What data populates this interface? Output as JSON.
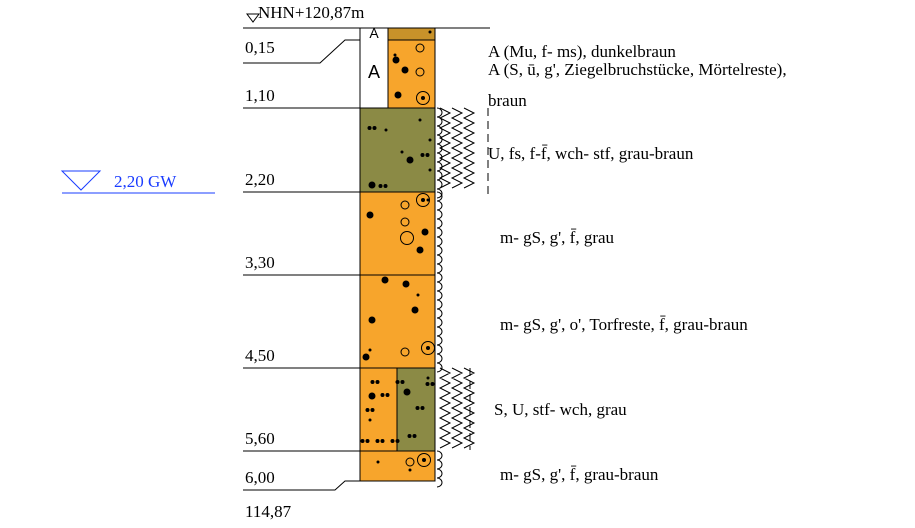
{
  "header": {
    "elevation": "NHN+120,87m"
  },
  "groundwater": {
    "label": "2,20 GW"
  },
  "depths": [
    "0,15",
    "1,10",
    "2,20",
    "3,30",
    "4,50",
    "5,60",
    "6,00"
  ],
  "bottom_elevation": "114,87",
  "layers": [
    {
      "symbol": "A",
      "description": [
        "A (Mu, f- ms), dunkelbraun"
      ]
    },
    {
      "symbol": "A",
      "description": [
        "A (S, ū, g', Ziegelbruchstücke, Mörtelreste),",
        "braun"
      ]
    },
    {
      "description": [
        "U, fs, f-f̄, wch- stf, grau-braun"
      ]
    },
    {
      "description": [
        "m- gS, g', f̄, grau"
      ]
    },
    {
      "description": [
        "m- gS, g', o', Torfreste, f̄, grau-braun"
      ]
    },
    {
      "description": [
        "S, U, stf- wch, grau"
      ]
    },
    {
      "description": [
        "m- gS, g', f̄, grau-braun"
      ]
    }
  ]
}
